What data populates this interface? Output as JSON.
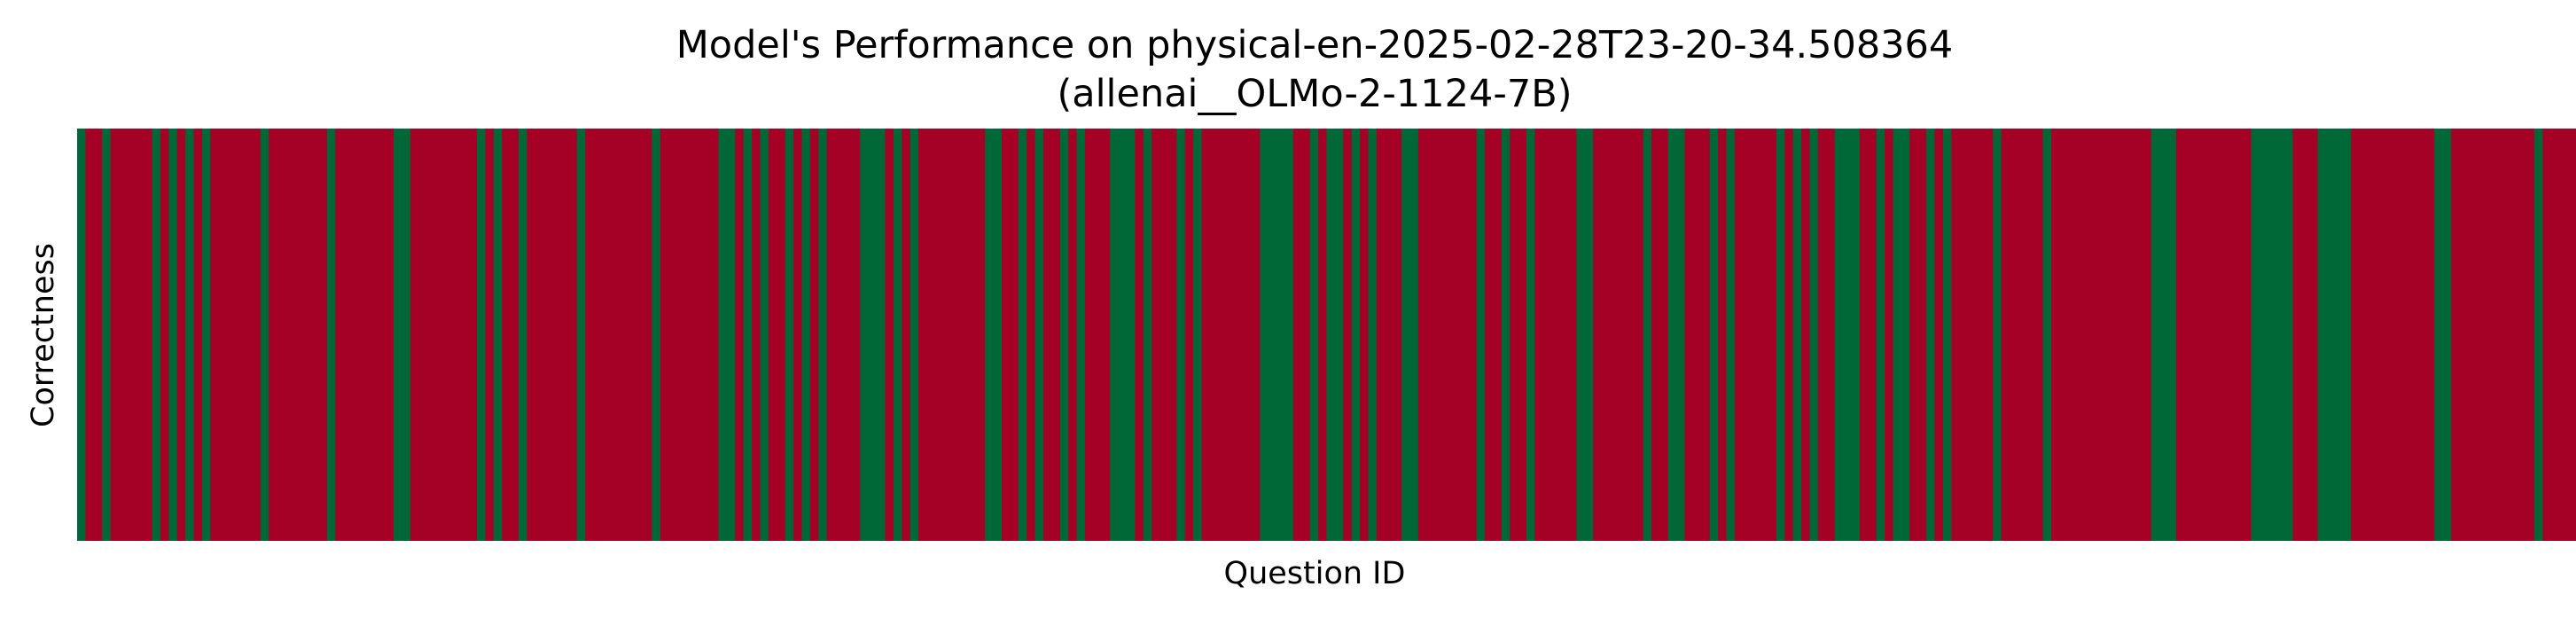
{
  "chart_data": {
    "type": "heatmap",
    "title": "Model's Performance on physical-en-2025-02-28T23-20-34.508364",
    "subtitle": "(allenai__OLMo-2-1124-7B)",
    "xlabel": "Question ID",
    "ylabel": "Correctness",
    "x_tick_labels": false,
    "y_tick_labels": false,
    "colorbar": false,
    "colors": {
      "correct": "#006837",
      "incorrect": "#a50026"
    },
    "n_questions": 300,
    "correct_question_ids": [
      0,
      3,
      9,
      11,
      13,
      15,
      22,
      30,
      38,
      39,
      48,
      50,
      53,
      60,
      69,
      77,
      78,
      80,
      82,
      85,
      87,
      89,
      94,
      95,
      96,
      98,
      100,
      109,
      110,
      113,
      115,
      118,
      120,
      124,
      125,
      126,
      128,
      132,
      134,
      142,
      143,
      144,
      145,
      148,
      150,
      151,
      153,
      155,
      159,
      160,
      168,
      171,
      174,
      180,
      181,
      188,
      191,
      192,
      196,
      198,
      204,
      206,
      208,
      211,
      212,
      213,
      216,
      218,
      219,
      222,
      224,
      230,
      236,
      249,
      250,
      251,
      261,
      262,
      263,
      264,
      265,
      269,
      270,
      271,
      272,
      283,
      284,
      295
    ]
  }
}
